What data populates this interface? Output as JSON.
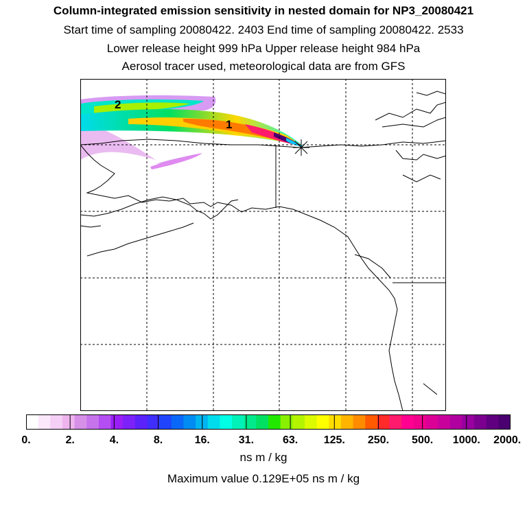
{
  "header": {
    "title": "Column-integrated emission sensitivity in nested domain for NP3_20080421",
    "time_line": "Start time of sampling 20080422.  2403     End time of sampling 20080422.  2533",
    "height_line": "Lower release height  999 hPa       Upper release height  984 hPa",
    "aerosol_line": "Aerosol tracer used, meteorological data are from GFS"
  },
  "map": {
    "labels": {
      "plume_1": "1",
      "plume_2": "2"
    },
    "release_marker_icon": "star-cross-icon"
  },
  "colorbar": {
    "colors": [
      "#ffffff",
      "#fbe8fb",
      "#f5cff5",
      "#eeb4ee",
      "#d690e8",
      "#c774ec",
      "#b44ef2",
      "#9a1ef6",
      "#7c22f8",
      "#5c22fa",
      "#3f2efc",
      "#1f44fc",
      "#0a68f8",
      "#008cf2",
      "#00b4f0",
      "#00dcec",
      "#00ffe4",
      "#00f2b8",
      "#00ea8c",
      "#00e062",
      "#22e800",
      "#88f000",
      "#b4f400",
      "#dcfa00",
      "#ffff00",
      "#ffde00",
      "#ffb400",
      "#ff8c00",
      "#ff5a00",
      "#ff2a2a",
      "#ff1a6e",
      "#ff0090",
      "#f0008c",
      "#dc0096",
      "#c8009c",
      "#b000a0",
      "#9800a0",
      "#7c0090",
      "#600080",
      "#4a0070"
    ],
    "tick_labels": [
      "0.",
      "2.",
      "4.",
      "8.",
      "16.",
      "31.",
      "63.",
      "125.",
      "250.",
      "500.",
      "1000.",
      "2000."
    ],
    "units": "ns m / kg"
  },
  "footer": {
    "max_value": "Maximum value  0.129E+05 ns m / kg"
  }
}
